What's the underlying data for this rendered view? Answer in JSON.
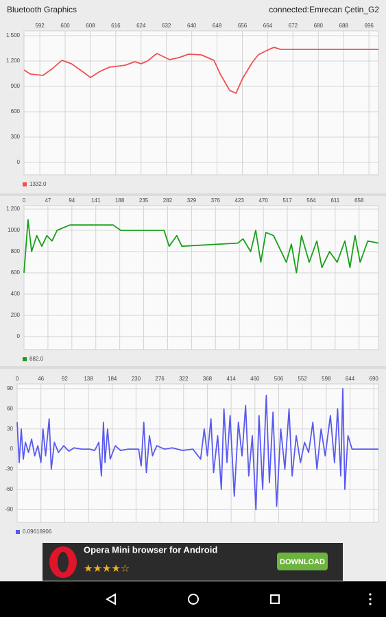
{
  "header": {
    "title": "Bluetooth Graphics",
    "status": "connected:Emrecan Çetin_G2"
  },
  "chart_data": [
    {
      "type": "line",
      "grid": true,
      "x": [
        587,
        589,
        593,
        596,
        599,
        602,
        606,
        608,
        611,
        614,
        619,
        622,
        624,
        626,
        629,
        633,
        636,
        639,
        643,
        647,
        649,
        652,
        654,
        656,
        659,
        661,
        664,
        666,
        668,
        699
      ],
      "series": [
        {
          "name": "1332.0",
          "color": "#f05050",
          "values": [
            1095,
            1046,
            1030,
            1111,
            1208,
            1168,
            1062,
            1005,
            1078,
            1127,
            1151,
            1192,
            1168,
            1200,
            1289,
            1216,
            1241,
            1281,
            1273,
            1208,
            1046,
            852,
            819,
            989,
            1176,
            1273,
            1330,
            1362,
            1338,
            1338
          ]
        }
      ],
      "xlim": [
        587,
        699
      ],
      "ylim": [
        -146,
        1557
      ],
      "xticks": [
        592,
        600,
        608,
        616,
        624,
        632,
        640,
        648,
        656,
        664,
        672,
        680,
        688,
        696
      ],
      "yticks": [
        0,
        300,
        600,
        900,
        {
          "value": 1200,
          "label": "1.200"
        },
        {
          "value": 1500,
          "label": "1.500"
        }
      ]
    },
    {
      "type": "line",
      "grid": true,
      "x": [
        0,
        8,
        15,
        25,
        35,
        45,
        55,
        65,
        90,
        175,
        190,
        275,
        285,
        300,
        310,
        420,
        430,
        445,
        455,
        465,
        475,
        490,
        500,
        515,
        525,
        535,
        545,
        560,
        575,
        585,
        600,
        615,
        630,
        640,
        650,
        660,
        675,
        696
      ],
      "series": [
        {
          "name": "882.0",
          "color": "#19a019",
          "values": [
            600,
            1100,
            800,
            950,
            850,
            950,
            900,
            1000,
            1050,
            1050,
            1000,
            1000,
            850,
            950,
            850,
            880,
            920,
            800,
            1000,
            700,
            980,
            950,
            850,
            700,
            870,
            600,
            950,
            700,
            900,
            650,
            800,
            700,
            900,
            650,
            950,
            700,
            900,
            880
          ]
        }
      ],
      "xlim": [
        0,
        696
      ],
      "ylim": [
        -123,
        1232
      ],
      "xticks": [
        0,
        47,
        94,
        141,
        188,
        235,
        282,
        329,
        376,
        423,
        470,
        517,
        564,
        611,
        658
      ],
      "yticks": [
        0,
        200,
        400,
        600,
        800,
        1000,
        {
          "value": 1200,
          "label": "1.200"
        }
      ]
    },
    {
      "type": "line",
      "grid": true,
      "x": [
        0,
        4,
        8,
        12,
        16,
        22,
        28,
        34,
        40,
        46,
        50,
        55,
        62,
        66,
        72,
        80,
        90,
        100,
        110,
        125,
        140,
        150,
        158,
        163,
        167,
        170,
        175,
        180,
        190,
        200,
        215,
        235,
        240,
        245,
        250,
        256,
        262,
        270,
        285,
        300,
        320,
        340,
        355,
        362,
        368,
        375,
        380,
        388,
        395,
        400,
        406,
        412,
        420,
        428,
        435,
        442,
        448,
        455,
        462,
        468,
        475,
        482,
        488,
        495,
        502,
        510,
        518,
        526,
        532,
        540,
        548,
        556,
        564,
        572,
        580,
        588,
        596,
        606,
        614,
        620,
        626,
        630,
        634,
        640,
        648,
        660,
        699
      ],
      "series": [
        {
          "name": "0.09616906",
          "color": "#5a5af0",
          "values": [
            40,
            -20,
            30,
            -15,
            10,
            -5,
            15,
            -10,
            5,
            -20,
            30,
            -10,
            45,
            -30,
            10,
            -5,
            5,
            -3,
            2,
            0,
            0,
            -2,
            10,
            -40,
            40,
            -20,
            30,
            -15,
            5,
            -2,
            0,
            0,
            -25,
            40,
            -35,
            20,
            -10,
            5,
            0,
            2,
            -2,
            0,
            -15,
            30,
            -10,
            45,
            -35,
            20,
            -60,
            60,
            -20,
            50,
            -70,
            40,
            -10,
            65,
            -40,
            20,
            -90,
            50,
            -60,
            80,
            -50,
            55,
            -85,
            30,
            -30,
            60,
            -40,
            20,
            -20,
            10,
            -5,
            40,
            -30,
            30,
            -10,
            50,
            -20,
            60,
            -40,
            90,
            -60,
            20,
            0,
            0,
            0
          ]
        }
      ],
      "xlim": [
        0,
        699
      ],
      "ylim": [
        -109,
        97
      ],
      "xticks": [
        0,
        46,
        92,
        138,
        184,
        230,
        276,
        322,
        368,
        414,
        460,
        506,
        552,
        598,
        644,
        690
      ],
      "yticks": [
        -90,
        -60,
        -30,
        0,
        30,
        60,
        90
      ]
    }
  ],
  "ad": {
    "title": "Opera Mini browser for Android",
    "button": "DOWNLOAD"
  }
}
